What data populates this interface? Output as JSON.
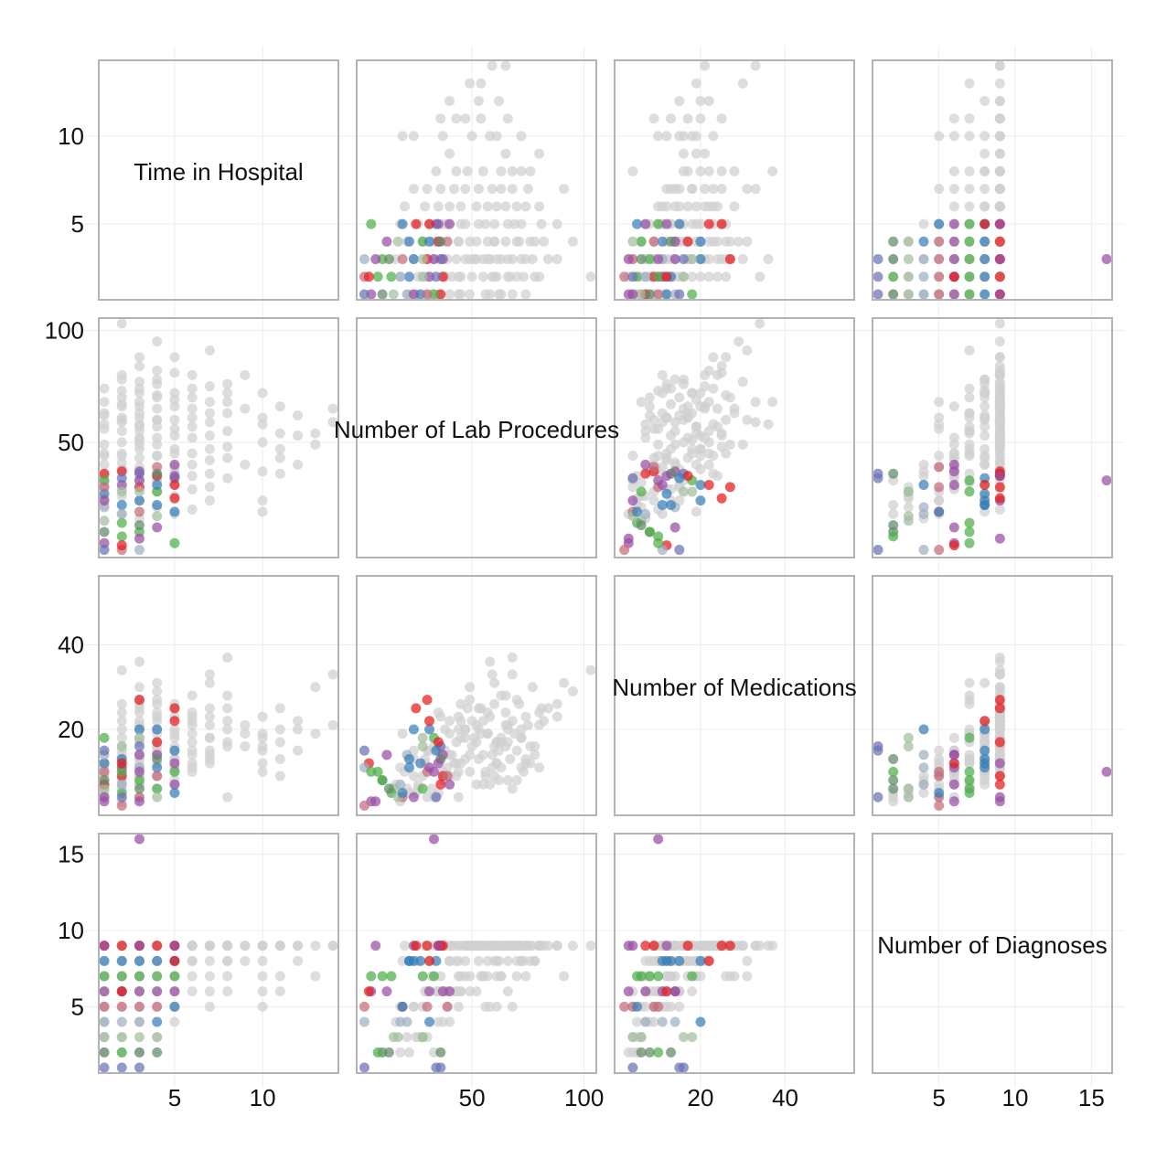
{
  "chart_data": {
    "type": "scatter",
    "title": "",
    "variables": [
      {
        "key": "time_in_hospital",
        "label": "Time in Hospital",
        "range": [
          1,
          14
        ],
        "ticks": [
          5,
          10
        ]
      },
      {
        "key": "num_lab_procedures",
        "label": "Number of Lab Procedures",
        "range": [
          1,
          103
        ],
        "ticks": [
          50,
          100
        ]
      },
      {
        "key": "num_medications",
        "label": "Number of Medications",
        "range": [
          1,
          55
        ],
        "ticks": [
          20,
          40
        ]
      },
      {
        "key": "number_diagnoses",
        "label": "Number of Diagnoses",
        "range": [
          1,
          16
        ],
        "ticks": [
          5,
          10,
          15
        ]
      }
    ],
    "background_color": "#d0d0d0",
    "highlight_colors": [
      "#e41a1c",
      "#377eb8",
      "#4daf4a",
      "#984ea3",
      "#c66b7a",
      "#9fb0c4",
      "#a3bfa0",
      "#5f8a66",
      "#6a72b5"
    ],
    "point_opacity": 0.72,
    "background_points": [
      [
        1,
        58,
        7,
        5
      ],
      [
        1,
        68,
        6,
        5
      ],
      [
        1,
        35,
        5,
        4
      ],
      [
        1,
        49,
        10,
        6
      ],
      [
        1,
        25,
        5,
        3
      ],
      [
        1,
        62,
        8,
        8
      ],
      [
        1,
        56,
        9,
        9
      ],
      [
        1,
        44,
        4,
        5
      ],
      [
        1,
        74,
        12,
        7
      ],
      [
        1,
        63,
        11,
        9
      ],
      [
        2,
        59,
        11,
        9
      ],
      [
        2,
        70,
        8,
        7
      ],
      [
        2,
        41,
        14,
        9
      ],
      [
        2,
        78,
        16,
        8
      ],
      [
        2,
        66,
        8,
        6
      ],
      [
        2,
        50,
        22,
        9
      ],
      [
        2,
        38,
        15,
        6
      ],
      [
        2,
        44,
        10,
        8
      ],
      [
        2,
        67,
        13,
        9
      ],
      [
        2,
        55,
        7,
        7
      ],
      [
        2,
        80,
        24,
        9
      ],
      [
        2,
        61,
        12,
        5
      ],
      [
        3,
        61,
        17,
        9
      ],
      [
        3,
        47,
        20,
        9
      ],
      [
        3,
        72,
        11,
        8
      ],
      [
        3,
        55,
        14,
        7
      ],
      [
        3,
        84,
        25,
        9
      ],
      [
        3,
        43,
        12,
        6
      ],
      [
        3,
        58,
        36,
        9
      ],
      [
        3,
        66,
        21,
        8
      ],
      [
        3,
        39,
        9,
        5
      ],
      [
        3,
        51,
        18,
        9
      ],
      [
        3,
        74,
        13,
        9
      ],
      [
        3,
        63,
        17,
        7
      ],
      [
        4,
        65,
        24,
        9
      ],
      [
        4,
        52,
        17,
        9
      ],
      [
        4,
        76,
        12,
        8
      ],
      [
        4,
        44,
        20,
        7
      ],
      [
        4,
        60,
        9,
        9
      ],
      [
        4,
        71,
        26,
        9
      ],
      [
        4,
        35,
        15,
        6
      ],
      [
        4,
        57,
        19,
        8
      ],
      [
        4,
        82,
        22,
        9
      ],
      [
        4,
        49,
        14,
        9
      ],
      [
        5,
        66,
        20,
        9
      ],
      [
        5,
        88,
        23,
        9
      ],
      [
        5,
        53,
        13,
        8
      ],
      [
        5,
        45,
        26,
        7
      ],
      [
        5,
        72,
        18,
        9
      ],
      [
        5,
        60,
        16,
        9
      ],
      [
        5,
        39,
        11,
        6
      ],
      [
        6,
        65,
        28,
        9
      ],
      [
        6,
        45,
        22,
        9
      ],
      [
        6,
        70,
        15,
        8
      ],
      [
        6,
        57,
        19,
        7
      ],
      [
        6,
        80,
        11,
        9
      ],
      [
        6,
        35,
        24,
        9
      ],
      [
        7,
        68,
        33,
        9
      ],
      [
        7,
        53,
        25,
        9
      ],
      [
        7,
        47,
        18,
        8
      ],
      [
        7,
        30,
        15,
        6
      ],
      [
        7,
        59,
        14,
        9
      ],
      [
        7,
        75,
        21,
        9
      ],
      [
        7,
        91,
        31,
        7
      ],
      [
        8,
        68,
        37,
        9
      ],
      [
        8,
        55,
        22,
        9
      ],
      [
        8,
        43,
        17,
        8
      ],
      [
        8,
        63,
        28,
        7
      ],
      [
        8,
        34,
        4,
        6
      ],
      [
        8,
        76,
        16,
        9
      ],
      [
        9,
        80,
        21,
        9
      ],
      [
        9,
        40,
        19,
        8
      ],
      [
        10,
        72,
        18,
        9
      ],
      [
        10,
        61,
        12,
        7
      ],
      [
        10,
        50,
        16,
        9
      ],
      [
        10,
        37,
        10,
        6
      ],
      [
        10,
        24,
        15,
        5
      ],
      [
        10,
        19,
        19,
        8
      ],
      [
        11,
        54,
        25,
        9
      ],
      [
        11,
        66,
        17,
        9
      ],
      [
        11,
        36,
        13,
        7
      ],
      [
        11,
        43,
        9,
        6
      ],
      [
        12,
        53,
        20,
        9
      ],
      [
        12,
        40,
        22,
        8
      ],
      [
        13,
        49,
        30,
        9
      ],
      [
        13,
        54,
        19,
        7
      ],
      [
        14,
        59,
        33,
        9
      ],
      [
        14,
        65,
        21,
        9
      ],
      [
        3,
        24,
        9,
        8
      ],
      [
        4,
        33,
        16,
        9
      ],
      [
        2,
        29,
        13,
        9
      ],
      [
        1,
        32,
        6,
        7
      ],
      [
        5,
        26,
        7,
        8
      ],
      [
        6,
        40,
        14,
        9
      ],
      [
        3,
        88,
        26,
        9
      ],
      [
        4,
        95,
        29,
        9
      ],
      [
        2,
        103,
        34,
        9
      ],
      [
        6,
        20,
        10,
        9
      ],
      [
        5,
        31,
        15,
        8
      ],
      [
        7,
        36,
        23,
        9
      ],
      [
        1,
        40,
        9,
        4
      ],
      [
        2,
        45,
        18,
        6
      ],
      [
        3,
        49,
        27,
        7
      ],
      [
        4,
        60,
        31,
        8
      ],
      [
        5,
        56,
        10,
        5
      ],
      [
        6,
        61,
        17,
        8
      ],
      [
        7,
        42,
        12,
        9
      ],
      [
        8,
        48,
        25,
        9
      ],
      [
        3,
        52,
        7,
        6
      ],
      [
        2,
        38,
        20,
        9
      ],
      [
        4,
        44,
        23,
        9
      ],
      [
        5,
        47,
        13,
        7
      ],
      [
        9,
        65,
        16,
        9
      ],
      [
        8,
        72,
        20,
        8
      ],
      [
        7,
        63,
        18,
        9
      ],
      [
        6,
        52,
        21,
        9
      ],
      [
        5,
        69,
        19,
        9
      ],
      [
        4,
        78,
        14,
        8
      ],
      [
        3,
        68,
        22,
        9
      ],
      [
        2,
        73,
        10,
        8
      ],
      [
        1,
        45,
        12,
        6
      ],
      [
        10,
        58,
        23,
        9
      ],
      [
        11,
        47,
        20,
        9
      ],
      [
        12,
        62,
        15,
        9
      ],
      [
        1,
        30,
        4,
        3
      ],
      [
        1,
        22,
        5,
        2
      ],
      [
        2,
        18,
        3,
        2
      ],
      [
        2,
        26,
        6,
        3
      ],
      [
        3,
        33,
        4,
        2
      ],
      [
        3,
        16,
        7,
        4
      ],
      [
        4,
        28,
        9,
        5
      ],
      [
        4,
        21,
        6,
        3
      ],
      [
        5,
        37,
        8,
        4
      ],
      [
        5,
        18,
        11,
        5
      ],
      [
        6,
        29,
        12,
        6
      ],
      [
        7,
        24,
        13,
        5
      ],
      [
        2,
        60,
        26,
        9
      ],
      [
        3,
        77,
        30,
        9
      ],
      [
        4,
        70,
        27,
        9
      ],
      [
        5,
        81,
        25,
        9
      ],
      [
        6,
        74,
        23,
        9
      ],
      [
        3,
        57,
        24,
        9
      ]
    ],
    "highlight_points": [
      [
        1,
        36,
        7,
        9,
        0
      ],
      [
        1,
        27,
        12,
        8,
        1
      ],
      [
        1,
        33,
        18,
        7,
        2
      ],
      [
        1,
        5,
        3,
        6,
        3
      ],
      [
        1,
        30,
        10,
        5,
        4
      ],
      [
        1,
        21,
        14,
        4,
        5
      ],
      [
        1,
        15,
        6,
        3,
        6
      ],
      [
        1,
        10,
        8,
        2,
        7
      ],
      [
        1,
        2,
        15,
        1,
        8
      ],
      [
        1,
        24,
        4,
        9,
        3
      ],
      [
        2,
        37,
        9,
        9,
        0
      ],
      [
        2,
        22,
        13,
        8,
        1
      ],
      [
        2,
        14,
        5,
        7,
        2
      ],
      [
        2,
        31,
        11,
        6,
        3
      ],
      [
        2,
        2,
        2,
        5,
        4
      ],
      [
        2,
        18,
        7,
        4,
        5
      ],
      [
        2,
        28,
        16,
        3,
        6
      ],
      [
        2,
        8,
        10,
        2,
        2
      ],
      [
        2,
        34,
        4,
        1,
        8
      ],
      [
        2,
        4,
        12,
        6,
        0
      ],
      [
        3,
        30,
        27,
        9,
        0
      ],
      [
        3,
        24,
        20,
        8,
        1
      ],
      [
        3,
        10,
        8,
        7,
        2
      ],
      [
        3,
        37,
        14,
        6,
        3
      ],
      [
        3,
        19,
        4,
        5,
        4
      ],
      [
        3,
        2,
        11,
        4,
        5
      ],
      [
        3,
        28,
        18,
        3,
        6
      ],
      [
        3,
        13,
        6,
        2,
        7
      ],
      [
        3,
        36,
        16,
        1,
        8
      ],
      [
        3,
        7,
        3,
        9,
        3
      ],
      [
        3,
        33,
        10,
        16,
        3
      ],
      [
        4,
        35,
        17,
        9,
        0
      ],
      [
        4,
        22,
        11,
        8,
        1
      ],
      [
        4,
        28,
        6,
        7,
        2
      ],
      [
        4,
        12,
        14,
        6,
        3
      ],
      [
        4,
        39,
        9,
        5,
        4
      ],
      [
        4,
        31,
        20,
        4,
        1
      ],
      [
        4,
        17,
        4,
        3,
        6
      ],
      [
        4,
        36,
        13,
        2,
        7
      ],
      [
        5,
        25,
        25,
        9,
        0
      ],
      [
        5,
        34,
        15,
        8,
        1
      ],
      [
        5,
        5,
        10,
        7,
        2
      ],
      [
        5,
        40,
        7,
        6,
        3
      ],
      [
        5,
        19,
        5,
        5,
        1
      ],
      [
        5,
        35,
        12,
        9,
        3
      ],
      [
        5,
        31,
        22,
        8,
        0
      ]
    ]
  }
}
